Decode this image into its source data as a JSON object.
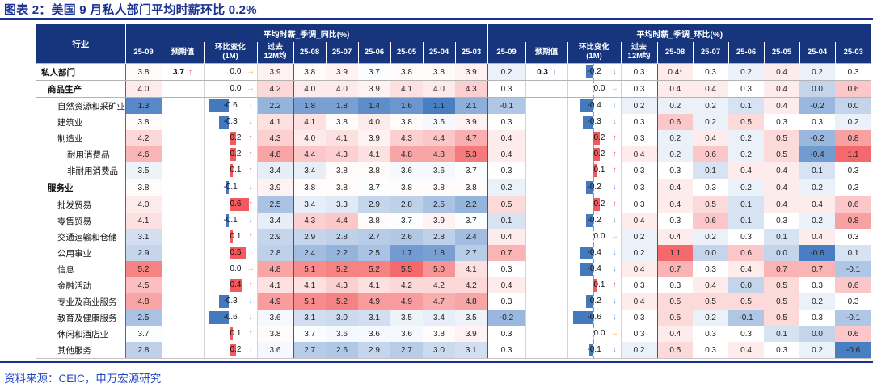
{
  "title": "图表 2：美国 9 月私人部门平均时薪环比 0.2%",
  "source": "资料来源：CEIC，申万宏源研究",
  "colors": {
    "header_bg": "#17357d",
    "title_navy": "#1b3192",
    "source_blue": "#2646c4",
    "heat_red": "#f4696b",
    "heat_blue": "#4a7ec3",
    "bar_red": "#f05a5e",
    "bar_blue": "#4579bd",
    "arrow_up": "#e8474b",
    "arrow_down": "#4a86d8",
    "arrow_flat": "#f2b33d"
  },
  "chart_data": {
    "type": "table",
    "title": "美国私人部门平均时薪",
    "industry_header": "行业",
    "sections": [
      {
        "key": "yoy",
        "title": "平均时薪_季调_同比(%)"
      },
      {
        "key": "mom",
        "title": "平均时薪_季调_环比(%)"
      }
    ],
    "columns": [
      "25-09",
      "预期值",
      "环比变化\n(1M)",
      "过去\n12M均",
      "25-08",
      "25-07",
      "25-06",
      "25-05",
      "25-04",
      "25-03"
    ],
    "yoy_scale": {
      "min": 1.1,
      "mid": 3.75,
      "max": 5.5
    },
    "mom_scale": {
      "min": -0.6,
      "mid": 0.3,
      "max": 1.1
    },
    "rows": [
      {
        "label": "私人部门",
        "indent": 0,
        "bold": true,
        "yoy": {
          "cur": 3.8,
          "exp": "3.7",
          "exp_arrow": "up",
          "chg": 0.0,
          "arrow": "flat",
          "avg": 3.9,
          "months": [
            3.8,
            3.9,
            3.7,
            3.8,
            3.8,
            3.9
          ]
        },
        "mom": {
          "cur": 0.2,
          "exp": "0.3",
          "exp_arrow": "down",
          "chg": -0.2,
          "arrow": "down",
          "avg": 0.3,
          "months": [
            "0.4*",
            0.3,
            0.2,
            0.4,
            0.2,
            0.3
          ]
        }
      },
      {
        "label": "商品生产",
        "indent": 1,
        "bold": true,
        "yoy": {
          "cur": 4.0,
          "exp": null,
          "exp_arrow": null,
          "chg": 0.0,
          "arrow": "flat",
          "avg": 4.2,
          "months": [
            4.0,
            4.0,
            3.9,
            4.1,
            4.0,
            4.3
          ]
        },
        "mom": {
          "cur": 0.3,
          "exp": null,
          "exp_arrow": null,
          "chg": 0.0,
          "arrow": "flat",
          "avg": 0.3,
          "months": [
            0.4,
            0.4,
            0.3,
            0.4,
            0.0,
            0.6
          ]
        }
      },
      {
        "label": "自然资源和采矿业",
        "indent": 2,
        "bold": false,
        "yoy": {
          "cur": 1.3,
          "exp": null,
          "exp_arrow": null,
          "chg": -0.6,
          "arrow": "down",
          "avg": 2.2,
          "months": [
            1.8,
            1.8,
            1.4,
            1.6,
            1.1,
            2.1
          ]
        },
        "mom": {
          "cur": -0.1,
          "exp": null,
          "exp_arrow": null,
          "chg": -0.4,
          "arrow": "down",
          "avg": 0.2,
          "months": [
            0.2,
            0.2,
            0.1,
            0.4,
            -0.2,
            0.0
          ]
        }
      },
      {
        "label": "建筑业",
        "indent": 2,
        "bold": false,
        "yoy": {
          "cur": 3.8,
          "exp": null,
          "exp_arrow": null,
          "chg": -0.3,
          "arrow": "down",
          "avg": 4.1,
          "months": [
            4.1,
            3.8,
            4.0,
            3.8,
            3.6,
            3.9
          ]
        },
        "mom": {
          "cur": 0.3,
          "exp": null,
          "exp_arrow": null,
          "chg": -0.3,
          "arrow": "down",
          "avg": 0.3,
          "months": [
            0.6,
            0.2,
            0.5,
            0.3,
            0.3,
            0.2
          ]
        }
      },
      {
        "label": "制造业",
        "indent": 2,
        "bold": false,
        "yoy": {
          "cur": 4.2,
          "exp": null,
          "exp_arrow": null,
          "chg": 0.2,
          "arrow": "up",
          "avg": 4.3,
          "months": [
            4.0,
            4.1,
            3.9,
            4.3,
            4.4,
            4.7
          ]
        },
        "mom": {
          "cur": 0.4,
          "exp": null,
          "exp_arrow": null,
          "chg": 0.2,
          "arrow": "up",
          "avg": 0.3,
          "months": [
            0.2,
            0.4,
            0.2,
            0.5,
            -0.2,
            0.8
          ]
        }
      },
      {
        "label": "耐用消费品",
        "indent": 3,
        "bold": false,
        "yoy": {
          "cur": 4.6,
          "exp": null,
          "exp_arrow": null,
          "chg": 0.2,
          "arrow": "up",
          "avg": 4.8,
          "months": [
            4.4,
            4.3,
            4.1,
            4.8,
            4.8,
            5.3
          ]
        },
        "mom": {
          "cur": 0.4,
          "exp": null,
          "exp_arrow": null,
          "chg": 0.2,
          "arrow": "up",
          "avg": 0.4,
          "months": [
            0.2,
            0.6,
            0.2,
            0.5,
            -0.4,
            1.1
          ]
        }
      },
      {
        "label": "非耐用消费品",
        "indent": 3,
        "bold": false,
        "yoy": {
          "cur": 3.5,
          "exp": null,
          "exp_arrow": null,
          "chg": 0.1,
          "arrow": "up",
          "avg": 3.4,
          "months": [
            3.4,
            3.8,
            3.8,
            3.6,
            3.6,
            3.7
          ]
        },
        "mom": {
          "cur": 0.3,
          "exp": null,
          "exp_arrow": null,
          "chg": 0.1,
          "arrow": "up",
          "avg": 0.3,
          "months": [
            0.3,
            0.1,
            0.4,
            0.4,
            0.1,
            0.3
          ]
        }
      },
      {
        "label": "服务业",
        "indent": 1,
        "bold": true,
        "yoy": {
          "cur": 3.8,
          "exp": null,
          "exp_arrow": null,
          "chg": -0.1,
          "arrow": "down",
          "avg": 3.9,
          "months": [
            3.8,
            3.8,
            3.7,
            3.8,
            3.8,
            3.8
          ]
        },
        "mom": {
          "cur": 0.2,
          "exp": null,
          "exp_arrow": null,
          "chg": -0.2,
          "arrow": "down",
          "avg": 0.3,
          "months": [
            0.4,
            0.3,
            0.2,
            0.4,
            0.2,
            0.3
          ]
        }
      },
      {
        "label": "批发贸易",
        "indent": 2,
        "bold": false,
        "yoy": {
          "cur": 4.0,
          "exp": null,
          "exp_arrow": null,
          "chg": 0.6,
          "arrow": "up",
          "avg": 2.5,
          "months": [
            3.4,
            3.3,
            2.9,
            2.8,
            2.5,
            2.2
          ]
        },
        "mom": {
          "cur": 0.5,
          "exp": null,
          "exp_arrow": null,
          "chg": 0.2,
          "arrow": "up",
          "avg": 0.3,
          "months": [
            0.4,
            0.5,
            0.1,
            0.4,
            0.4,
            0.6
          ]
        }
      },
      {
        "label": "零售贸易",
        "indent": 2,
        "bold": false,
        "yoy": {
          "cur": 4.1,
          "exp": null,
          "exp_arrow": null,
          "chg": -0.1,
          "arrow": "down",
          "avg": 3.4,
          "months": [
            4.3,
            4.4,
            3.8,
            3.7,
            3.9,
            3.7
          ]
        },
        "mom": {
          "cur": 0.1,
          "exp": null,
          "exp_arrow": null,
          "chg": -0.2,
          "arrow": "down",
          "avg": 0.4,
          "months": [
            0.3,
            0.6,
            0.1,
            0.3,
            0.2,
            0.8
          ]
        }
      },
      {
        "label": "交通运输和仓储",
        "indent": 2,
        "bold": false,
        "yoy": {
          "cur": 3.1,
          "exp": null,
          "exp_arrow": null,
          "chg": 0.1,
          "arrow": "up",
          "avg": 2.9,
          "months": [
            2.9,
            2.8,
            2.7,
            2.6,
            2.8,
            2.4
          ]
        },
        "mom": {
          "cur": 0.4,
          "exp": null,
          "exp_arrow": null,
          "chg": 0.0,
          "arrow": "flat",
          "avg": 0.2,
          "months": [
            0.4,
            0.2,
            0.3,
            0.1,
            0.4,
            0.3
          ]
        }
      },
      {
        "label": "公用事业",
        "indent": 2,
        "bold": false,
        "yoy": {
          "cur": 2.9,
          "exp": null,
          "exp_arrow": null,
          "chg": 0.5,
          "arrow": "up",
          "avg": 2.8,
          "months": [
            2.4,
            2.2,
            2.5,
            1.7,
            1.8,
            2.7
          ]
        },
        "mom": {
          "cur": 0.7,
          "exp": null,
          "exp_arrow": null,
          "chg": -0.4,
          "arrow": "down",
          "avg": 0.2,
          "months": [
            1.1,
            0.0,
            0.6,
            0.0,
            -0.6,
            0.1
          ]
        }
      },
      {
        "label": "信息",
        "indent": 2,
        "bold": false,
        "yoy": {
          "cur": 5.2,
          "exp": null,
          "exp_arrow": null,
          "chg": 0.0,
          "arrow": "flat",
          "avg": 4.8,
          "months": [
            5.1,
            5.2,
            5.2,
            5.5,
            5.0,
            4.1
          ]
        },
        "mom": {
          "cur": 0.3,
          "exp": null,
          "exp_arrow": null,
          "chg": -0.4,
          "arrow": "down",
          "avg": 0.4,
          "months": [
            0.7,
            0.3,
            0.4,
            0.7,
            0.7,
            -0.1
          ]
        }
      },
      {
        "label": "金融活动",
        "indent": 2,
        "bold": false,
        "yoy": {
          "cur": 4.5,
          "exp": null,
          "exp_arrow": null,
          "chg": 0.4,
          "arrow": "up",
          "avg": 4.1,
          "months": [
            4.1,
            4.3,
            4.1,
            4.2,
            4.2,
            4.2
          ]
        },
        "mom": {
          "cur": 0.4,
          "exp": null,
          "exp_arrow": null,
          "chg": 0.1,
          "arrow": "up",
          "avg": 0.3,
          "months": [
            0.3,
            0.4,
            0.0,
            0.5,
            0.3,
            0.6
          ]
        }
      },
      {
        "label": "专业及商业服务",
        "indent": 2,
        "bold": false,
        "yoy": {
          "cur": 4.8,
          "exp": null,
          "exp_arrow": null,
          "chg": -0.3,
          "arrow": "down",
          "avg": 4.9,
          "months": [
            5.1,
            5.2,
            4.9,
            4.9,
            4.7,
            4.8
          ]
        },
        "mom": {
          "cur": 0.3,
          "exp": null,
          "exp_arrow": null,
          "chg": -0.2,
          "arrow": "down",
          "avg": 0.4,
          "months": [
            0.5,
            0.5,
            0.5,
            0.5,
            0.2,
            0.3
          ]
        }
      },
      {
        "label": "教育及健康服务",
        "indent": 2,
        "bold": false,
        "yoy": {
          "cur": 2.5,
          "exp": null,
          "exp_arrow": null,
          "chg": -0.6,
          "arrow": "down",
          "avg": 3.6,
          "months": [
            3.1,
            3.0,
            3.1,
            3.5,
            3.4,
            3.5
          ]
        },
        "mom": {
          "cur": -0.2,
          "exp": null,
          "exp_arrow": null,
          "chg": -0.6,
          "arrow": "down",
          "avg": 0.3,
          "months": [
            0.5,
            0.2,
            -0.1,
            0.5,
            0.3,
            -0.1
          ]
        }
      },
      {
        "label": "休闲和酒店业",
        "indent": 2,
        "bold": false,
        "yoy": {
          "cur": 3.7,
          "exp": null,
          "exp_arrow": null,
          "chg": 0.1,
          "arrow": "up",
          "avg": 3.8,
          "months": [
            3.7,
            3.6,
            3.6,
            3.6,
            3.8,
            3.9
          ]
        },
        "mom": {
          "cur": 0.3,
          "exp": null,
          "exp_arrow": null,
          "chg": 0.0,
          "arrow": "flat",
          "avg": 0.3,
          "months": [
            0.4,
            0.3,
            0.3,
            0.1,
            0.0,
            0.6
          ]
        }
      },
      {
        "label": "其他服务",
        "indent": 2,
        "bold": false,
        "yoy": {
          "cur": 2.8,
          "exp": null,
          "exp_arrow": null,
          "chg": 0.2,
          "arrow": "up",
          "avg": 3.6,
          "months": [
            2.7,
            2.6,
            2.9,
            2.7,
            3.0,
            3.1
          ]
        },
        "mom": {
          "cur": 0.3,
          "exp": null,
          "exp_arrow": null,
          "chg": -0.1,
          "arrow": "down",
          "avg": 0.2,
          "months": [
            0.5,
            0.3,
            0.4,
            0.3,
            0.2,
            -0.6
          ]
        }
      }
    ]
  }
}
